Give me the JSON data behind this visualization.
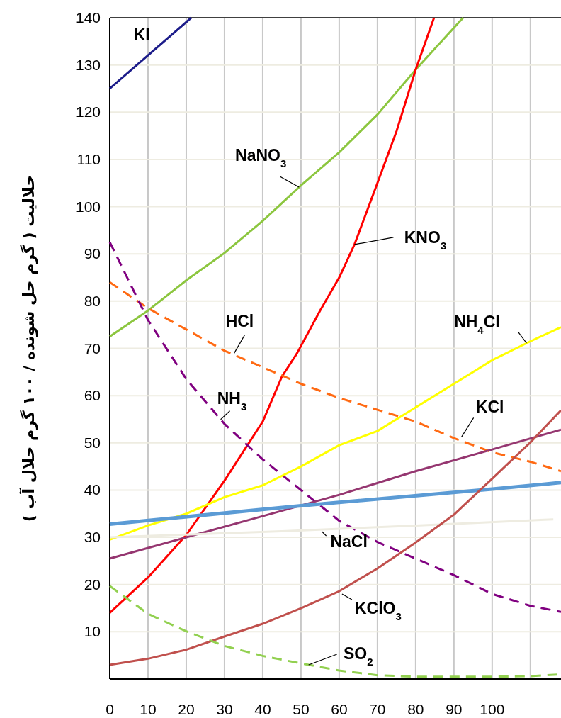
{
  "chart_data": {
    "type": "line",
    "ylabel": "حلالیت ( گرم حل شونده / ۱۰۰ گرم حلال آب )",
    "xlim": [
      0,
      118
    ],
    "ylim": [
      0,
      140
    ],
    "xticks": [
      0,
      10,
      20,
      30,
      40,
      50,
      60,
      70,
      80,
      90,
      100,
      {
        "value": 110,
        "label": null
      }
    ],
    "yticks": [
      {
        "value": 0,
        "label": null
      },
      10,
      20,
      30,
      40,
      50,
      60,
      70,
      80,
      90,
      100,
      110,
      120,
      130,
      140
    ],
    "grid": true,
    "marker": "none",
    "series": [
      {
        "name": "KI",
        "color": "#1c1c8a",
        "x": [
          0,
          21.3
        ],
        "values": [
          125,
          140
        ]
      },
      {
        "name": "NaNO$_{3}$",
        "color": "#8cc63f",
        "x": [
          0,
          10,
          20,
          30,
          40,
          50,
          60,
          70,
          80,
          92.4
        ],
        "values": [
          72.5,
          78,
          84.4,
          90.2,
          97,
          104.5,
          111.5,
          119.5,
          129,
          140
        ]
      },
      {
        "name": "KNO$_{3}$",
        "color": "#ff0000",
        "x": [
          0,
          10,
          20,
          30,
          36,
          40,
          45,
          49,
          55,
          60,
          64,
          70,
          75,
          80,
          84.8
        ],
        "values": [
          14,
          21.5,
          30.5,
          42,
          49.5,
          54.5,
          64,
          69,
          78,
          85,
          92,
          105,
          116,
          129,
          140
        ]
      },
      {
        "name": "HCl",
        "color": "#ff6a13",
        "line_style": "dashed",
        "x": [
          0,
          10,
          20,
          30,
          40,
          50,
          60,
          70,
          80,
          90,
          100,
          110,
          118
        ],
        "values": [
          84,
          78.5,
          74,
          69.5,
          66,
          62.5,
          59.5,
          57,
          54.5,
          51,
          48,
          46,
          44
        ]
      },
      {
        "name": "NH$_{3}$",
        "color": "#800080",
        "line_style": "dashed",
        "x": [
          0,
          10,
          20,
          30,
          40,
          50,
          60,
          70,
          80,
          90,
          100,
          110,
          118
        ],
        "values": [
          92.5,
          76,
          63.5,
          54,
          46.5,
          40,
          33.5,
          29,
          25.5,
          22,
          18,
          15.5,
          14.2
        ]
      },
      {
        "name": "NH$_{4}$Cl",
        "color": "#ffff00",
        "x": [
          0,
          10,
          20,
          30,
          40,
          50,
          60,
          70,
          80,
          90,
          100,
          110,
          118
        ],
        "values": [
          29.5,
          32.5,
          35,
          38.5,
          41,
          45,
          49.5,
          52.5,
          57.5,
          62.5,
          67.5,
          71.5,
          74.5
        ]
      },
      {
        "name": "KCl",
        "color": "#953670",
        "x": [
          0,
          20,
          40,
          60,
          80,
          100,
          118
        ],
        "values": [
          25.5,
          30,
          34.5,
          39,
          44,
          48.6,
          52.8
        ]
      },
      {
        "color": "#5b9bd5",
        "x": [
          0,
          50,
          100,
          118
        ],
        "values": [
          32.8,
          36.7,
          40.2,
          41.6
        ]
      },
      {
        "name": "NaCl",
        "color": "#eeece1",
        "x": [
          0,
          45,
          80,
          116
        ],
        "values": [
          30,
          31.3,
          32.5,
          33.8
        ]
      },
      {
        "name": "KClO$_{3}$",
        "color": "#c0504d",
        "x": [
          0,
          10,
          20,
          30,
          40,
          50,
          60,
          70,
          80,
          90,
          100,
          110,
          118
        ],
        "values": [
          3,
          4.3,
          6.2,
          9,
          11.7,
          15,
          18.6,
          23.4,
          28.9,
          34.8,
          42.4,
          50.1,
          56.9
        ]
      },
      {
        "name": "SO$_{2}$",
        "color": "#92d050",
        "line_style": "dashed",
        "x": [
          0,
          10,
          20,
          30,
          40,
          50,
          60,
          70,
          80,
          90,
          100,
          110,
          118
        ],
        "values": [
          19.7,
          13.8,
          10.1,
          7,
          4.9,
          3.3,
          1.8,
          0.8,
          0.5,
          0.5,
          0.5,
          0.6,
          1
        ]
      }
    ]
  }
}
